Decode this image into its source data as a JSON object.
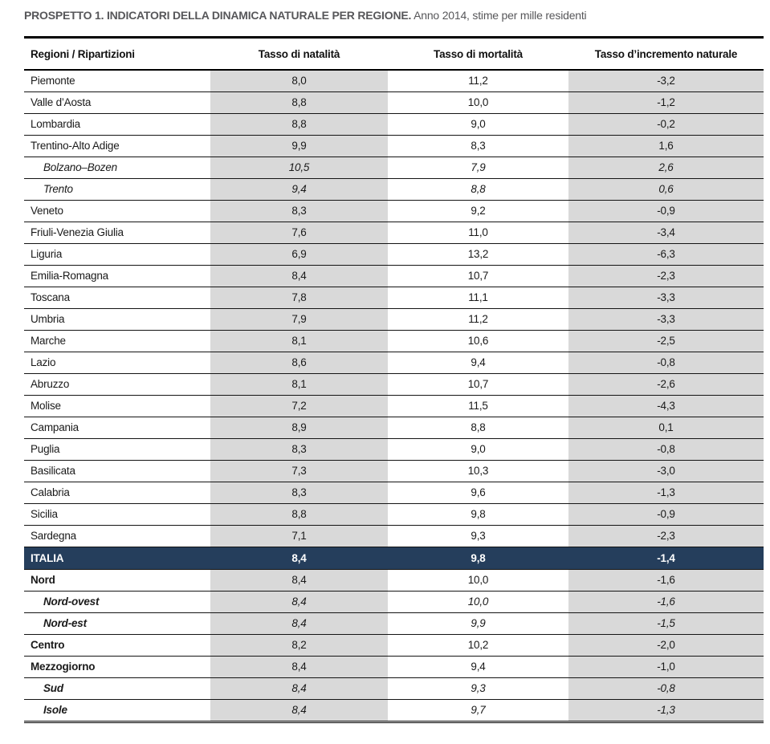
{
  "title": {
    "bold": "PROSPETTO 1. INDICATORI DELLA DINAMICA NATURALE PER REGIONE.",
    "normal": " Anno 2014, stime per mille residenti"
  },
  "colors": {
    "shaded_column": "#d9d9d9",
    "italy_row_background": "#253e5c",
    "title_text": "#57575a"
  },
  "table": {
    "columns": {
      "region": "Regioni / Ripartizioni",
      "natality": "Tasso di natalità",
      "mortality": "Tasso di mortalità",
      "increment": "Tasso d’incremento naturale"
    },
    "rows": [
      {
        "region": "Piemonte",
        "natalita": "8,0",
        "mortalita": "11,2",
        "incremento": "-3,2",
        "style": "normal"
      },
      {
        "region": "Valle d’Aosta",
        "natalita": "8,8",
        "mortalita": "10,0",
        "incremento": "-1,2",
        "style": "normal"
      },
      {
        "region": "Lombardia",
        "natalita": "8,8",
        "mortalita": "9,0",
        "incremento": "-0,2",
        "style": "normal"
      },
      {
        "region": "Trentino-Alto Adige",
        "natalita": "9,9",
        "mortalita": "8,3",
        "incremento": "1,6",
        "style": "normal"
      },
      {
        "region": "Bolzano–Bozen",
        "natalita": "10,5",
        "mortalita": "7,9",
        "incremento": "2,6",
        "style": "sub"
      },
      {
        "region": "Trento",
        "natalita": "9,4",
        "mortalita": "8,8",
        "incremento": "0,6",
        "style": "sub"
      },
      {
        "region": "Veneto",
        "natalita": "8,3",
        "mortalita": "9,2",
        "incremento": "-0,9",
        "style": "normal"
      },
      {
        "region": "Friuli-Venezia Giulia",
        "natalita": "7,6",
        "mortalita": "11,0",
        "incremento": "-3,4",
        "style": "normal"
      },
      {
        "region": "Liguria",
        "natalita": "6,9",
        "mortalita": "13,2",
        "incremento": "-6,3",
        "style": "normal"
      },
      {
        "region": "Emilia-Romagna",
        "natalita": "8,4",
        "mortalita": "10,7",
        "incremento": "-2,3",
        "style": "normal"
      },
      {
        "region": "Toscana",
        "natalita": "7,8",
        "mortalita": "11,1",
        "incremento": "-3,3",
        "style": "normal"
      },
      {
        "region": "Umbria",
        "natalita": "7,9",
        "mortalita": "11,2",
        "incremento": "-3,3",
        "style": "normal"
      },
      {
        "region": "Marche",
        "natalita": "8,1",
        "mortalita": "10,6",
        "incremento": "-2,5",
        "style": "normal"
      },
      {
        "region": "Lazio",
        "natalita": "8,6",
        "mortalita": "9,4",
        "incremento": "-0,8",
        "style": "normal"
      },
      {
        "region": "Abruzzo",
        "natalita": "8,1",
        "mortalita": "10,7",
        "incremento": "-2,6",
        "style": "normal"
      },
      {
        "region": "Molise",
        "natalita": "7,2",
        "mortalita": "11,5",
        "incremento": "-4,3",
        "style": "normal"
      },
      {
        "region": "Campania",
        "natalita": "8,9",
        "mortalita": "8,8",
        "incremento": "0,1",
        "style": "normal"
      },
      {
        "region": "Puglia",
        "natalita": "8,3",
        "mortalita": "9,0",
        "incremento": "-0,8",
        "style": "normal"
      },
      {
        "region": "Basilicata",
        "natalita": "7,3",
        "mortalita": "10,3",
        "incremento": "-3,0",
        "style": "normal"
      },
      {
        "region": "Calabria",
        "natalita": "8,3",
        "mortalita": "9,6",
        "incremento": "-1,3",
        "style": "normal"
      },
      {
        "region": "Sicilia",
        "natalita": "8,8",
        "mortalita": "9,8",
        "incremento": "-0,9",
        "style": "normal"
      },
      {
        "region": "Sardegna",
        "natalita": "7,1",
        "mortalita": "9,3",
        "incremento": "-2,3",
        "style": "normal"
      },
      {
        "region": "ITALIA",
        "natalita": "8,4",
        "mortalita": "9,8",
        "incremento": "-1,4",
        "style": "italy"
      },
      {
        "region": "Nord",
        "natalita": "8,4",
        "mortalita": "10,0",
        "incremento": "-1,6",
        "style": "agg"
      },
      {
        "region": "Nord-ovest",
        "natalita": "8,4",
        "mortalita": "10,0",
        "incremento": "-1,6",
        "style": "aggsub"
      },
      {
        "region": "Nord-est",
        "natalita": "8,4",
        "mortalita": "9,9",
        "incremento": "-1,5",
        "style": "aggsub"
      },
      {
        "region": "Centro",
        "natalita": "8,2",
        "mortalita": "10,2",
        "incremento": "-2,0",
        "style": "agg"
      },
      {
        "region": "Mezzogiorno",
        "natalita": "8,4",
        "mortalita": "9,4",
        "incremento": "-1,0",
        "style": "agg"
      },
      {
        "region": "Sud",
        "natalita": "8,4",
        "mortalita": "9,3",
        "incremento": "-0,8",
        "style": "aggsub"
      },
      {
        "region": "Isole",
        "natalita": "8,4",
        "mortalita": "9,7",
        "incremento": "-1,3",
        "style": "aggsub"
      }
    ]
  }
}
